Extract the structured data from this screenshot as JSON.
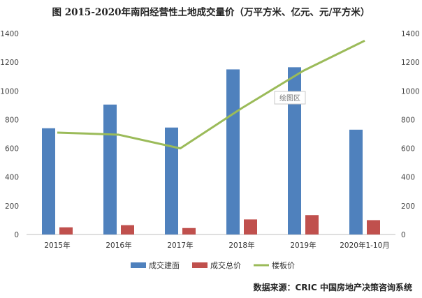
{
  "chart_data": {
    "type": "bar",
    "title": "图 2015-2020年南阳经营性土地成交量价（万平方米、亿元、元/平方米）",
    "categories": [
      "2015年",
      "2016年",
      "2017年",
      "2018年",
      "2019年",
      "2020年1-10月"
    ],
    "ylim": [
      0,
      1400
    ],
    "y_ticks": [
      0,
      200,
      400,
      600,
      800,
      1000,
      1200,
      1400
    ],
    "y2lim": [
      0,
      1400
    ],
    "y2_ticks": [
      0,
      200,
      400,
      600,
      800,
      1000,
      1200,
      1400
    ],
    "grid": false,
    "legend_position": "bottom",
    "series": [
      {
        "name": "成交建面",
        "kind": "bar",
        "axis": "left",
        "color": "#4F81BD",
        "values": [
          740,
          905,
          745,
          1150,
          1165,
          730
        ]
      },
      {
        "name": "成交总价",
        "kind": "bar",
        "axis": "left",
        "color": "#C0504D",
        "values": [
          50,
          65,
          45,
          105,
          135,
          100
        ]
      },
      {
        "name": "楼板价",
        "kind": "line",
        "axis": "right",
        "color": "#9BBB59",
        "values": [
          710,
          695,
          600,
          880,
          1140,
          1350
        ]
      }
    ],
    "plot_area_tooltip": "绘图区",
    "source": "数据来源：CRIC 中国房地产决策咨询系统"
  }
}
